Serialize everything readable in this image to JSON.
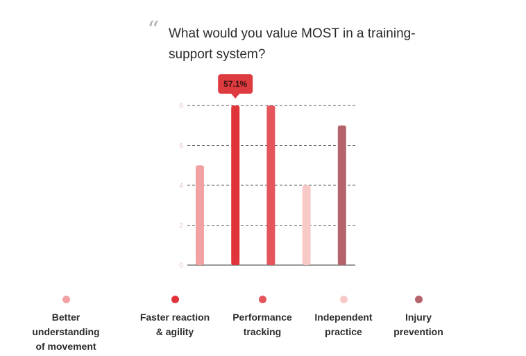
{
  "quote_glyph": "“",
  "title": "What would you value MOST in a training-support system?",
  "tooltip": {
    "text": "57.1%",
    "category_index": 1,
    "color": "#dd3b40"
  },
  "chart_data": {
    "type": "bar",
    "title": "What would you value MOST in a training-support system?",
    "categories": [
      "Better understanding\nof movement",
      "Faster reaction\n& agility",
      "Performance\ntracking",
      "Independent\npractice",
      "Injury\nprevention"
    ],
    "values": [
      5,
      8,
      8,
      4,
      7
    ],
    "colors": [
      "#f2a2a2",
      "#e0343a",
      "#e4555c",
      "#f7c9c7",
      "#b5636b"
    ],
    "ylim": [
      0,
      8
    ],
    "yticks": [
      0,
      2,
      4,
      6,
      8
    ],
    "grid": true,
    "legend": "bottom",
    "xlabel": "",
    "ylabel": ""
  }
}
